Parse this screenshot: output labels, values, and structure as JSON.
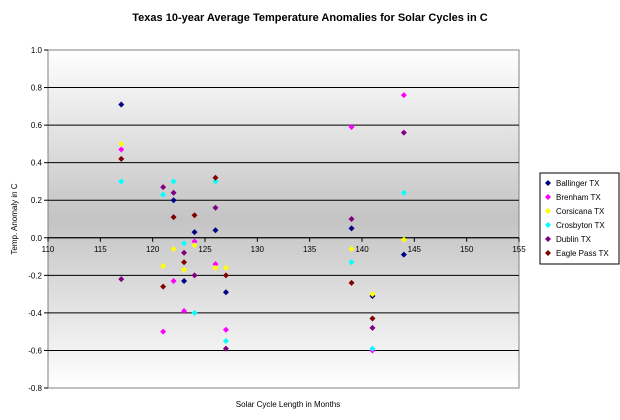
{
  "chart_data": {
    "type": "scatter",
    "title": "Texas 10-year Average Temperature Anomalies for Solar Cycles in C",
    "xlabel": "Solar Cycle Length in Months",
    "ylabel": "Temp. Anomaly in C",
    "xlim": [
      110,
      155
    ],
    "ylim": [
      -0.8,
      1.0
    ],
    "x_ticks": [
      "110",
      "115",
      "120",
      "125",
      "130",
      "135",
      "140",
      "145",
      "150",
      "155"
    ],
    "y_ticks": [
      "1.0",
      "0.8",
      "0.6",
      "0.4",
      "0.2",
      "0.0",
      "-0.2",
      "-0.4",
      "-0.6",
      "-0.8"
    ],
    "legend_position": "right",
    "grid": true,
    "series": [
      {
        "name": "Ballinger TX",
        "color": "#000080",
        "points": [
          [
            117,
            0.71
          ],
          [
            122,
            0.2
          ],
          [
            123,
            -0.23
          ],
          [
            124,
            0.03
          ],
          [
            126,
            0.04
          ],
          [
            127,
            -0.29
          ],
          [
            139,
            0.05
          ],
          [
            141,
            -0.31
          ],
          [
            144,
            -0.09
          ]
        ]
      },
      {
        "name": "Brenham TX",
        "color": "#ff00ff",
        "points": [
          [
            117,
            0.47
          ],
          [
            121,
            -0.5
          ],
          [
            122,
            -0.23
          ],
          [
            123,
            -0.39
          ],
          [
            124,
            -0.02
          ],
          [
            126,
            -0.14
          ],
          [
            127,
            -0.49
          ],
          [
            139,
            0.59
          ],
          [
            141,
            -0.6
          ],
          [
            144,
            0.76
          ]
        ]
      },
      {
        "name": "Corsicana TX",
        "color": "#ffff00",
        "points": [
          [
            117,
            0.5
          ],
          [
            121,
            -0.15
          ],
          [
            122,
            -0.06
          ],
          [
            123,
            -0.17
          ],
          [
            124,
            -0.04
          ],
          [
            126,
            -0.16
          ],
          [
            127,
            -0.16
          ],
          [
            139,
            -0.06
          ],
          [
            141,
            -0.3
          ],
          [
            144,
            -0.01
          ]
        ]
      },
      {
        "name": "Crosbyton TX",
        "color": "#00ffff",
        "points": [
          [
            117,
            0.3
          ],
          [
            121,
            0.23
          ],
          [
            122,
            0.3
          ],
          [
            123,
            -0.03
          ],
          [
            124,
            -0.4
          ],
          [
            126,
            0.3
          ],
          [
            127,
            -0.55
          ],
          [
            139,
            -0.13
          ],
          [
            141,
            -0.59
          ],
          [
            144,
            0.24
          ]
        ]
      },
      {
        "name": "Dublin TX",
        "color": "#800080",
        "points": [
          [
            117,
            -0.22
          ],
          [
            121,
            0.27
          ],
          [
            122,
            0.24
          ],
          [
            123,
            -0.08
          ],
          [
            124,
            -0.2
          ],
          [
            126,
            0.16
          ],
          [
            127,
            -0.59
          ],
          [
            139,
            0.1
          ],
          [
            141,
            -0.48
          ],
          [
            144,
            0.56
          ]
        ]
      },
      {
        "name": "Eagle Pass TX",
        "color": "#800000",
        "points": [
          [
            117,
            0.42
          ],
          [
            121,
            -0.26
          ],
          [
            122,
            0.11
          ],
          [
            123,
            -0.13
          ],
          [
            124,
            0.12
          ],
          [
            126,
            0.32
          ],
          [
            127,
            -0.2
          ],
          [
            139,
            -0.24
          ],
          [
            141,
            -0.43
          ]
        ]
      }
    ]
  }
}
